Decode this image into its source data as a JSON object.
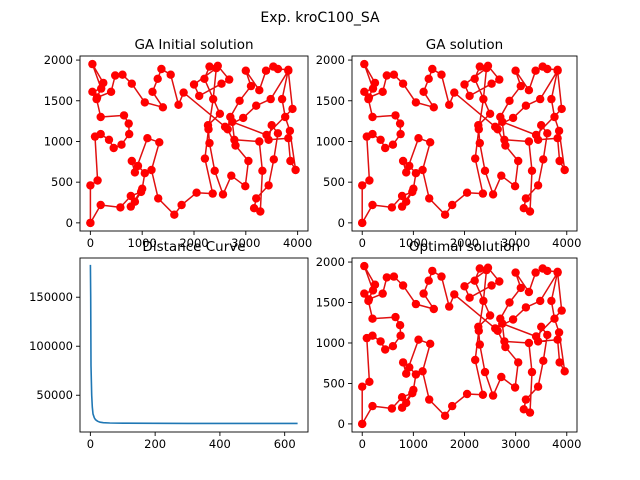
{
  "figure": {
    "suptitle": "Exp. kroC100_SA"
  },
  "chart_data": [
    {
      "type": "line",
      "panel": "top-left",
      "title": "GA Initial solution",
      "xlim": [
        -200,
        4200
      ],
      "ylim": [
        -100,
        2050
      ],
      "xticks": [
        0,
        1000,
        2000,
        3000,
        4000
      ],
      "yticks": [
        0,
        500,
        1000,
        1500,
        2000
      ],
      "marker": "circle",
      "color": "#ff0000",
      "line_color": "#e01010",
      "points": [
        [
          0,
          0
        ],
        [
          200,
          220
        ],
        [
          580,
          190
        ],
        [
          780,
          330
        ],
        [
          980,
          380
        ],
        [
          860,
          260
        ],
        [
          780,
          200
        ],
        [
          1000,
          420
        ],
        [
          1050,
          610
        ],
        [
          920,
          700
        ],
        [
          800,
          760
        ],
        [
          860,
          620
        ],
        [
          1100,
          1040
        ],
        [
          1330,
          990
        ],
        [
          1180,
          650
        ],
        [
          1310,
          300
        ],
        [
          1620,
          100
        ],
        [
          1760,
          220
        ],
        [
          2050,
          370
        ],
        [
          2360,
          360
        ],
        [
          2210,
          790
        ],
        [
          2280,
          1150
        ],
        [
          2370,
          1520
        ],
        [
          2430,
          1900
        ],
        [
          2000,
          1700
        ],
        [
          2100,
          1560
        ],
        [
          2530,
          1710
        ],
        [
          2680,
          1760
        ],
        [
          2460,
          1930
        ],
        [
          2300,
          1920
        ],
        [
          2200,
          1770
        ],
        [
          2500,
          1340
        ],
        [
          2270,
          1200
        ],
        [
          2300,
          980
        ],
        [
          2400,
          640
        ],
        [
          2560,
          350
        ],
        [
          2720,
          580
        ],
        [
          2990,
          450
        ],
        [
          3050,
          760
        ],
        [
          2800,
          950
        ],
        [
          2650,
          1150
        ],
        [
          2700,
          1300
        ],
        [
          2880,
          1500
        ],
        [
          3100,
          1680
        ],
        [
          3000,
          1870
        ],
        [
          3260,
          1630
        ],
        [
          3390,
          1870
        ],
        [
          3530,
          1920
        ],
        [
          3620,
          1890
        ],
        [
          3820,
          1880
        ],
        [
          3700,
          1520
        ],
        [
          3760,
          1300
        ],
        [
          3850,
          1130
        ],
        [
          3960,
          650
        ],
        [
          3860,
          760
        ],
        [
          3820,
          1040
        ],
        [
          3440,
          1020
        ],
        [
          3500,
          1200
        ],
        [
          3620,
          1100
        ],
        [
          3540,
          780
        ],
        [
          3440,
          460
        ],
        [
          3200,
          300
        ],
        [
          3160,
          180
        ],
        [
          3280,
          140
        ],
        [
          3320,
          640
        ],
        [
          3260,
          1000
        ],
        [
          2780,
          1020
        ],
        [
          2740,
          1240
        ],
        [
          3400,
          1080
        ],
        [
          3900,
          1400
        ],
        [
          3820,
          1870
        ],
        [
          3480,
          1520
        ],
        [
          3200,
          1440
        ],
        [
          2950,
          1290
        ],
        [
          2600,
          1180
        ],
        [
          1800,
          1600
        ],
        [
          1700,
          1450
        ],
        [
          1550,
          1820
        ],
        [
          1370,
          1890
        ],
        [
          1300,
          1770
        ],
        [
          1200,
          1610
        ],
        [
          1400,
          1420
        ],
        [
          1050,
          1480
        ],
        [
          800,
          1710
        ],
        [
          620,
          1820
        ],
        [
          480,
          1810
        ],
        [
          400,
          1610
        ],
        [
          130,
          1540
        ],
        [
          250,
          1720
        ],
        [
          40,
          1950
        ],
        [
          210,
          1650
        ],
        [
          40,
          1610
        ],
        [
          120,
          1520
        ],
        [
          200,
          1300
        ],
        [
          650,
          1320
        ],
        [
          740,
          1220
        ],
        [
          750,
          1090
        ],
        [
          600,
          960
        ],
        [
          450,
          920
        ],
        [
          360,
          1020
        ],
        [
          200,
          1090
        ],
        [
          90,
          1060
        ],
        [
          140,
          520
        ],
        [
          0,
          460
        ],
        [
          0,
          0
        ]
      ]
    },
    {
      "type": "line",
      "panel": "top-right",
      "title": "GA solution",
      "xlim": [
        -200,
        4200
      ],
      "ylim": [
        -100,
        2050
      ],
      "xticks": [
        0,
        1000,
        2000,
        3000,
        4000
      ],
      "yticks": [
        0,
        500,
        1000,
        1500,
        2000
      ],
      "marker": "circle",
      "color": "#ff0000",
      "line_color": "#e01010",
      "points": [
        [
          0,
          0
        ],
        [
          200,
          220
        ],
        [
          580,
          190
        ],
        [
          780,
          330
        ],
        [
          980,
          380
        ],
        [
          860,
          260
        ],
        [
          780,
          200
        ],
        [
          1000,
          420
        ],
        [
          1050,
          610
        ],
        [
          920,
          700
        ],
        [
          800,
          760
        ],
        [
          860,
          620
        ],
        [
          1100,
          1040
        ],
        [
          1330,
          990
        ],
        [
          1180,
          650
        ],
        [
          1310,
          300
        ],
        [
          1620,
          100
        ],
        [
          1760,
          220
        ],
        [
          2050,
          370
        ],
        [
          2360,
          360
        ],
        [
          2210,
          790
        ],
        [
          2280,
          1150
        ],
        [
          2370,
          1520
        ],
        [
          2430,
          1900
        ],
        [
          2000,
          1700
        ],
        [
          2100,
          1560
        ],
        [
          2530,
          1710
        ],
        [
          2680,
          1760
        ],
        [
          2460,
          1930
        ],
        [
          2300,
          1920
        ],
        [
          2200,
          1770
        ],
        [
          2500,
          1340
        ],
        [
          2270,
          1200
        ],
        [
          2300,
          980
        ],
        [
          2400,
          640
        ],
        [
          2560,
          350
        ],
        [
          2720,
          580
        ],
        [
          2990,
          450
        ],
        [
          3050,
          760
        ],
        [
          2800,
          950
        ],
        [
          2650,
          1150
        ],
        [
          2700,
          1300
        ],
        [
          2880,
          1500
        ],
        [
          3100,
          1680
        ],
        [
          3000,
          1870
        ],
        [
          3260,
          1630
        ],
        [
          3390,
          1870
        ],
        [
          3530,
          1920
        ],
        [
          3620,
          1890
        ],
        [
          3820,
          1880
        ],
        [
          3700,
          1520
        ],
        [
          3760,
          1300
        ],
        [
          3850,
          1130
        ],
        [
          3960,
          650
        ],
        [
          3860,
          760
        ],
        [
          3820,
          1040
        ],
        [
          3440,
          1020
        ],
        [
          3500,
          1200
        ],
        [
          3620,
          1100
        ],
        [
          3540,
          780
        ],
        [
          3440,
          460
        ],
        [
          3200,
          300
        ],
        [
          3160,
          180
        ],
        [
          3280,
          140
        ],
        [
          3320,
          640
        ],
        [
          3260,
          1000
        ],
        [
          2780,
          1020
        ],
        [
          2740,
          1240
        ],
        [
          3400,
          1080
        ],
        [
          3900,
          1400
        ],
        [
          3820,
          1870
        ],
        [
          3480,
          1520
        ],
        [
          3200,
          1440
        ],
        [
          2950,
          1290
        ],
        [
          2600,
          1180
        ],
        [
          1800,
          1600
        ],
        [
          1700,
          1450
        ],
        [
          1550,
          1820
        ],
        [
          1370,
          1890
        ],
        [
          1300,
          1770
        ],
        [
          1200,
          1610
        ],
        [
          1400,
          1420
        ],
        [
          1050,
          1480
        ],
        [
          800,
          1710
        ],
        [
          620,
          1820
        ],
        [
          480,
          1810
        ],
        [
          400,
          1610
        ],
        [
          130,
          1540
        ],
        [
          250,
          1720
        ],
        [
          40,
          1950
        ],
        [
          210,
          1650
        ],
        [
          40,
          1610
        ],
        [
          120,
          1520
        ],
        [
          200,
          1300
        ],
        [
          650,
          1320
        ],
        [
          740,
          1220
        ],
        [
          750,
          1090
        ],
        [
          600,
          960
        ],
        [
          450,
          920
        ],
        [
          360,
          1020
        ],
        [
          200,
          1090
        ],
        [
          90,
          1060
        ],
        [
          140,
          520
        ],
        [
          0,
          460
        ],
        [
          0,
          0
        ]
      ]
    },
    {
      "type": "line",
      "panel": "bottom-left",
      "title": "Distance Curve",
      "xlim": [
        -32,
        672
      ],
      "ylim": [
        12500,
        190000
      ],
      "xticks": [
        0,
        200,
        400,
        600
      ],
      "yticks": [
        50000,
        100000,
        150000
      ],
      "color": "#1f77b4",
      "x": [
        0,
        1,
        2,
        4,
        6,
        8,
        12,
        16,
        22,
        30,
        40,
        60,
        100,
        200,
        300,
        400,
        500,
        600,
        640
      ],
      "y": [
        183000,
        150000,
        80000,
        50000,
        38000,
        31000,
        27000,
        25000,
        23500,
        22500,
        22000,
        21700,
        21500,
        21400,
        21300,
        21300,
        21300,
        21300,
        21300
      ]
    },
    {
      "type": "line",
      "panel": "bottom-right",
      "title": "Optimal solution",
      "xlim": [
        -200,
        4200
      ],
      "ylim": [
        -100,
        2050
      ],
      "xticks": [
        0,
        1000,
        2000,
        3000,
        4000
      ],
      "yticks": [
        0,
        500,
        1000,
        1500,
        2000
      ],
      "marker": "circle",
      "color": "#ff0000",
      "line_color": "#e01010",
      "points": [
        [
          0,
          0
        ],
        [
          200,
          220
        ],
        [
          580,
          190
        ],
        [
          780,
          330
        ],
        [
          980,
          380
        ],
        [
          860,
          260
        ],
        [
          780,
          200
        ],
        [
          1000,
          420
        ],
        [
          1050,
          610
        ],
        [
          920,
          700
        ],
        [
          800,
          760
        ],
        [
          860,
          620
        ],
        [
          1100,
          1040
        ],
        [
          1330,
          990
        ],
        [
          1180,
          650
        ],
        [
          1310,
          300
        ],
        [
          1620,
          100
        ],
        [
          1760,
          220
        ],
        [
          2050,
          370
        ],
        [
          2360,
          360
        ],
        [
          2210,
          790
        ],
        [
          2280,
          1150
        ],
        [
          2370,
          1520
        ],
        [
          2430,
          1900
        ],
        [
          2000,
          1700
        ],
        [
          2100,
          1560
        ],
        [
          2530,
          1710
        ],
        [
          2680,
          1760
        ],
        [
          2460,
          1930
        ],
        [
          2300,
          1920
        ],
        [
          2200,
          1770
        ],
        [
          2500,
          1340
        ],
        [
          2270,
          1200
        ],
        [
          2300,
          980
        ],
        [
          2400,
          640
        ],
        [
          2560,
          350
        ],
        [
          2720,
          580
        ],
        [
          2990,
          450
        ],
        [
          3050,
          760
        ],
        [
          2800,
          950
        ],
        [
          2650,
          1150
        ],
        [
          2700,
          1300
        ],
        [
          2880,
          1500
        ],
        [
          3100,
          1680
        ],
        [
          3000,
          1870
        ],
        [
          3260,
          1630
        ],
        [
          3390,
          1870
        ],
        [
          3530,
          1920
        ],
        [
          3620,
          1890
        ],
        [
          3820,
          1880
        ],
        [
          3700,
          1520
        ],
        [
          3760,
          1300
        ],
        [
          3850,
          1130
        ],
        [
          3960,
          650
        ],
        [
          3860,
          760
        ],
        [
          3820,
          1040
        ],
        [
          3440,
          1020
        ],
        [
          3500,
          1200
        ],
        [
          3620,
          1100
        ],
        [
          3540,
          780
        ],
        [
          3440,
          460
        ],
        [
          3200,
          300
        ],
        [
          3160,
          180
        ],
        [
          3280,
          140
        ],
        [
          3320,
          640
        ],
        [
          3260,
          1000
        ],
        [
          2780,
          1020
        ],
        [
          2740,
          1240
        ],
        [
          3400,
          1080
        ],
        [
          3900,
          1400
        ],
        [
          3820,
          1870
        ],
        [
          3480,
          1520
        ],
        [
          3200,
          1440
        ],
        [
          2950,
          1290
        ],
        [
          2600,
          1180
        ],
        [
          1800,
          1600
        ],
        [
          1700,
          1450
        ],
        [
          1550,
          1820
        ],
        [
          1370,
          1890
        ],
        [
          1300,
          1770
        ],
        [
          1200,
          1610
        ],
        [
          1400,
          1420
        ],
        [
          1050,
          1480
        ],
        [
          800,
          1710
        ],
        [
          620,
          1820
        ],
        [
          480,
          1810
        ],
        [
          400,
          1610
        ],
        [
          130,
          1540
        ],
        [
          250,
          1720
        ],
        [
          40,
          1950
        ],
        [
          210,
          1650
        ],
        [
          40,
          1610
        ],
        [
          120,
          1520
        ],
        [
          200,
          1300
        ],
        [
          650,
          1320
        ],
        [
          740,
          1220
        ],
        [
          750,
          1090
        ],
        [
          600,
          960
        ],
        [
          450,
          920
        ],
        [
          360,
          1020
        ],
        [
          200,
          1090
        ],
        [
          90,
          1060
        ],
        [
          140,
          520
        ],
        [
          0,
          460
        ],
        [
          0,
          0
        ]
      ]
    }
  ]
}
